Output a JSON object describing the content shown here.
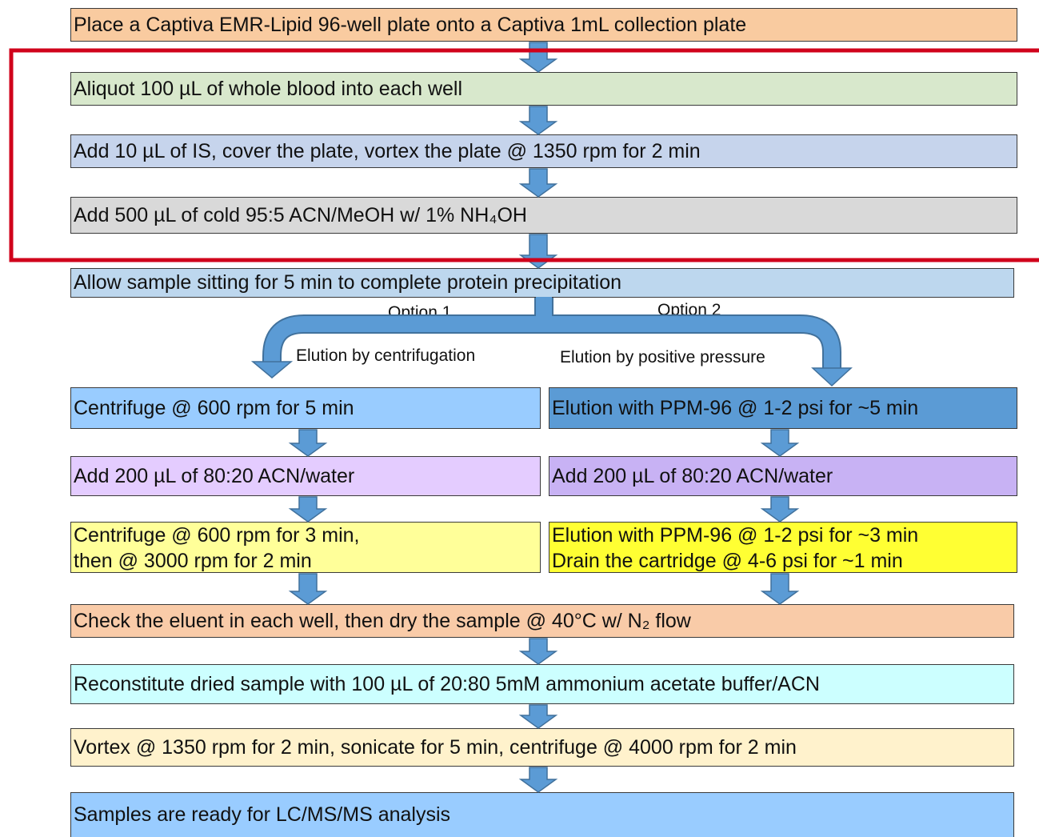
{
  "top_steps": [
    {
      "label": "Place a Captiva EMR-Lipid 96-well plate onto a Captiva 1mL collection plate"
    },
    {
      "label": "Aliquot 100 µL of whole blood into each well"
    },
    {
      "label": "Add 10 µL of IS, cover the plate, vortex the plate @ 1350 rpm for 2 min"
    },
    {
      "label": "Add 500 µL of cold 95:5 ACN/MeOH w/ 1% NH₄OH"
    },
    {
      "label": "Allow sample sitting for 5 min to complete protein precipitation"
    }
  ],
  "options": [
    {
      "option": "Option 1",
      "method": "Elution by centrifugation",
      "steps": [
        {
          "lines": [
            "Centrifuge @ 600 rpm for 5 min"
          ]
        },
        {
          "lines": [
            "Add 200 µL of 80:20 ACN/water"
          ]
        },
        {
          "lines": [
            "Centrifuge @ 600 rpm for 3 min,",
            "then @ 3000 rpm for 2 min"
          ]
        }
      ]
    },
    {
      "option": "Option 2",
      "method": "Elution by positive pressure",
      "steps": [
        {
          "lines": [
            "Elution with PPM-96 @ 1-2 psi for ~5 min"
          ]
        },
        {
          "lines": [
            "Add 200 µL of 80:20 ACN/water"
          ]
        },
        {
          "lines": [
            "Elution with PPM-96 @ 1-2 psi for ~3 min",
            "Drain the cartridge @ 4-6 psi for ~1 min"
          ]
        }
      ]
    }
  ],
  "bottom_steps": [
    {
      "label": "Check the eluent in each well, then dry the sample @ 40°C w/ N₂ flow"
    },
    {
      "label": "Reconstitute dried sample with 100 µL of 20:80 5mM ammonium acetate buffer/ACN"
    },
    {
      "label": "Vortex @ 1350 rpm for 2 min, sonicate for 5 min, centrifuge @ 4000 rpm for 2 min"
    },
    {
      "label": "Samples are ready for LC/MS/MS analysis"
    }
  ]
}
